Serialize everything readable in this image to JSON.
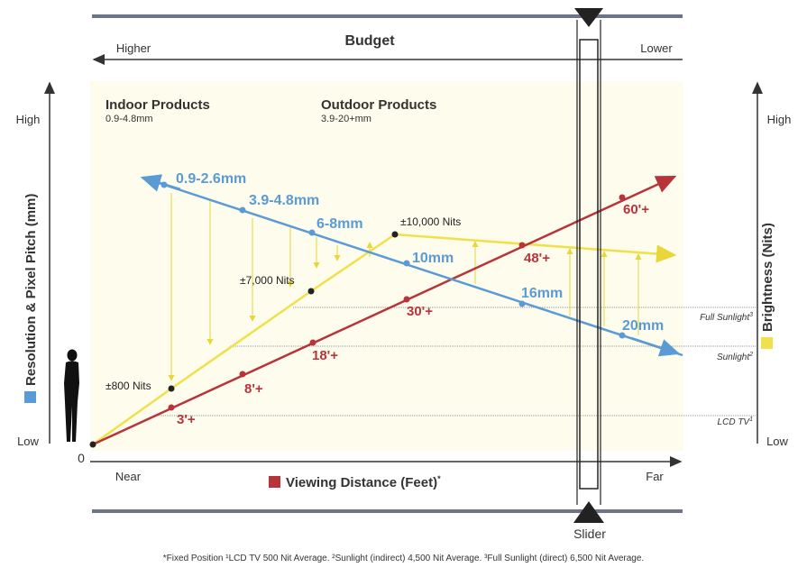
{
  "budget": {
    "title": "Budget",
    "left": "Higher",
    "right": "Lower"
  },
  "sections": {
    "indoor": {
      "title": "Indoor Products",
      "range": "0.9-4.8mm"
    },
    "outdoor": {
      "title": "Outdoor Products",
      "range": "3.9-20+mm"
    }
  },
  "left_axis": {
    "title": "Resolution & Pixel Pitch (mm)",
    "high": "High",
    "low": "Low",
    "color": "#5b9bd5"
  },
  "right_axis": {
    "title": "Brightness (Nits)",
    "high": "High",
    "low": "Low",
    "color": "#f0e04a"
  },
  "x_axis": {
    "title": "Viewing Distance (Feet)",
    "title_sup": "*",
    "near": "Near",
    "far": "Far",
    "origin": "0",
    "color": "#b8333a"
  },
  "slider": {
    "label": "Slider"
  },
  "footnote": "*Fixed Position ¹LCD TV 500 Nit Average. ²Sunlight (indirect) 4,500 Nit Average. ³Full Sunlight (direct) 6,500 Nit Average.",
  "chart_data": {
    "type": "line",
    "title": "Budget",
    "xlabel": "Viewing Distance (Feet)",
    "ylabel_left": "Resolution & Pixel Pitch (mm)",
    "ylabel_right": "Brightness (Nits)",
    "x_range": [
      "Near",
      "Far"
    ],
    "series": [
      {
        "name": "Pixel Pitch",
        "color": "#5b9bd5",
        "labels": [
          "0.9-2.6mm",
          "3.9-4.8mm",
          "6-8mm",
          "10mm",
          "16mm",
          "20mm"
        ]
      },
      {
        "name": "Viewing Distance",
        "color": "#b8333a",
        "labels": [
          "3'+",
          "8'+",
          "18'+",
          "30'+",
          "48'+",
          "60'+"
        ]
      },
      {
        "name": "Brightness",
        "color": "#f0e04a",
        "labels": [
          "±800 Nits",
          "±7,000 Nits",
          "±10,000 Nits"
        ]
      }
    ],
    "reference_lines": [
      {
        "label": "Full Sunlight",
        "sup": "3"
      },
      {
        "label": "Sunlight",
        "sup": "2"
      },
      {
        "label": "LCD TV",
        "sup": "1"
      }
    ]
  }
}
